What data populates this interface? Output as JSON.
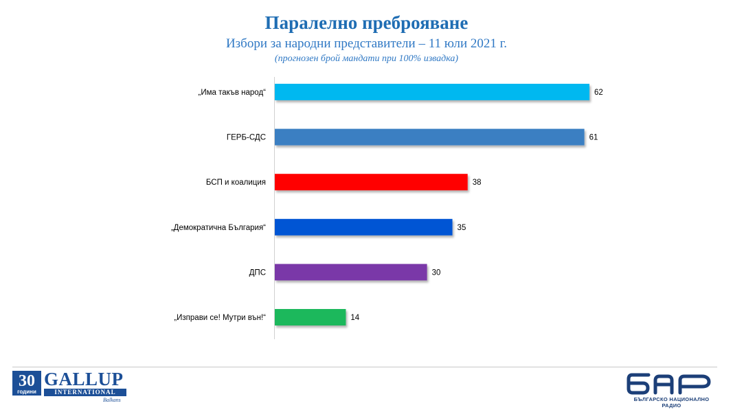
{
  "header": {
    "title": "Паралелно преброяване",
    "subtitle": "Избори за народни представители – 11 юли 2021 г.",
    "note": "(прогнозен брой мандати при 100% извадка)"
  },
  "chart_data": {
    "type": "bar",
    "orientation": "horizontal",
    "categories": [
      "„Има такъв народ“",
      "ГЕРБ-СДС",
      "БСП и коалиция",
      "„Демократична България“",
      "ДПС",
      "„Изправи се! Мутри вън!“"
    ],
    "values": [
      62,
      61,
      38,
      35,
      30,
      14
    ],
    "colors": [
      "#00b8f0",
      "#3a7fc2",
      "#ff0000",
      "#0055d4",
      "#7a37a8",
      "#1cb85b"
    ],
    "data_labels": [
      "62",
      "61",
      "38",
      "35",
      "30",
      "14"
    ],
    "xlim": [
      0,
      65
    ],
    "grid": false,
    "legend": "none"
  },
  "logos": {
    "gallup_number": "30",
    "gallup_years": "години",
    "gallup_word": "GALLUP",
    "gallup_international": "INTERNATIONAL",
    "gallup_region": "Balkans",
    "bnr_caption": "БЪЛГАРСКО НАЦИОНАЛНО РАДИО"
  }
}
